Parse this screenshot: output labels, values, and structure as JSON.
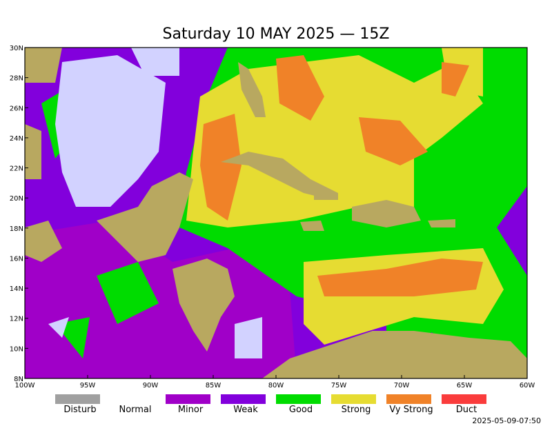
{
  "title": "Saturday 10 MAY 2025 — 15Z",
  "map": {
    "lon_labels": [
      "100W",
      "95W",
      "90W",
      "85W",
      "80W",
      "75W",
      "70W",
      "65W",
      "60W"
    ],
    "lat_labels": [
      "30N",
      "28N",
      "26N",
      "24N",
      "22N",
      "20N",
      "18N",
      "16N",
      "14N",
      "12N",
      "10N",
      "8N"
    ]
  },
  "legend": [
    {
      "label": "Disturb",
      "color": "#a0a0a0"
    },
    {
      "label": "Normal"
    },
    {
      "label": "Minor",
      "color": "#a000c8"
    },
    {
      "label": "Weak",
      "color": "#8200dc"
    },
    {
      "label": "Good",
      "color": "#00dc00"
    },
    {
      "label": "Strong",
      "color": "#e6dc32"
    },
    {
      "label": "Vy Strong",
      "color": "#f08228"
    },
    {
      "label": "Duct",
      "color": "#fa3c3c"
    }
  ],
  "timestamp": "2025-05-09-07:50"
}
